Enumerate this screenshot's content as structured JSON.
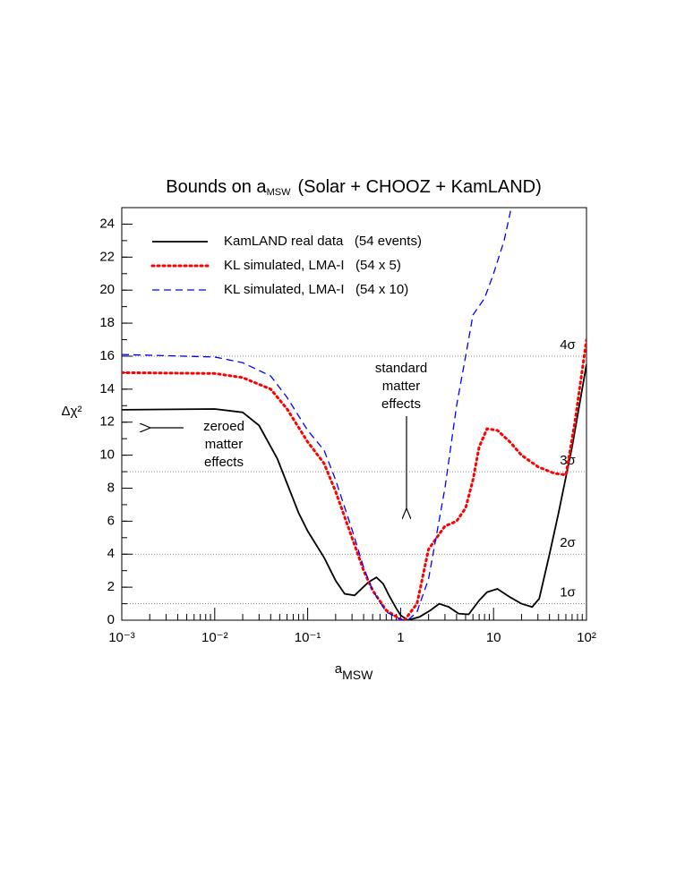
{
  "chart_data": {
    "type": "line",
    "title": {
      "text_before": "Bounds on a",
      "subscript": "MSW",
      "text_after": "(Solar + CHOOZ + KamLAND)"
    },
    "x_label": {
      "base": "a",
      "subscript": "MSW"
    },
    "y_label": "Δχ²",
    "x_scale": "log",
    "xlim": [
      0.001,
      100
    ],
    "xticks": [
      {
        "value": 0.001,
        "label": "10⁻³"
      },
      {
        "value": 0.01,
        "label": "10⁻²"
      },
      {
        "value": 0.1,
        "label": "10⁻¹"
      },
      1,
      10,
      {
        "value": 100,
        "label": "10²"
      }
    ],
    "ylim": [
      0,
      25
    ],
    "yticks": [
      0,
      2,
      4,
      6,
      8,
      10,
      12,
      14,
      16,
      18,
      20,
      22,
      24
    ],
    "legend": "upper left",
    "sigma_levels": [
      {
        "value": 1,
        "label": "1σ"
      },
      {
        "value": 4,
        "label": "2σ"
      },
      {
        "value": 9,
        "label": "3σ"
      },
      {
        "value": 16,
        "label": "4σ"
      }
    ],
    "annotations": [
      {
        "lines": [
          "zeroed",
          "matter",
          "effects"
        ]
      },
      {
        "lines": [
          "standard",
          "matter",
          "effects"
        ]
      }
    ],
    "series": [
      {
        "name": "KamLAND real data   (54 events)",
        "color": "#000000",
        "style": "solid",
        "x": [
          0.001,
          0.01,
          0.02,
          0.03,
          0.047,
          0.08,
          0.1,
          0.15,
          0.2,
          0.25,
          0.32,
          0.45,
          0.55,
          0.65,
          0.75,
          0.9,
          1.0,
          1.2,
          1.6,
          2.1,
          2.6,
          3.3,
          4.2,
          5.4,
          7,
          8.5,
          11,
          15,
          20,
          26,
          31,
          40,
          50,
          70,
          100
        ],
        "values": [
          12.75,
          12.8,
          12.6,
          11.8,
          9.8,
          6.5,
          5.4,
          3.8,
          2.4,
          1.6,
          1.5,
          2.3,
          2.6,
          2.2,
          1.5,
          0.7,
          0.3,
          0,
          0.2,
          0.6,
          1.0,
          0.8,
          0.4,
          0.35,
          1.2,
          1.7,
          1.9,
          1.4,
          1.0,
          0.8,
          1.3,
          4.0,
          6.5,
          10.5,
          15.5
        ]
      },
      {
        "name": "KL simulated, LMA-I   (54 x 5)",
        "color": "#ff0000",
        "style": "dotted",
        "x": [
          0.001,
          0.01,
          0.02,
          0.04,
          0.06,
          0.1,
          0.15,
          0.2,
          0.3,
          0.4,
          0.5,
          0.7,
          1.0,
          1.1,
          1.5,
          2,
          3,
          4,
          5,
          6,
          7,
          8.5,
          11,
          15,
          20,
          30,
          45,
          60,
          75,
          100
        ],
        "values": [
          15.0,
          14.95,
          14.7,
          14.0,
          12.8,
          10.8,
          9.5,
          7.8,
          5.0,
          3.0,
          1.8,
          0.6,
          0.05,
          0,
          1.0,
          4.3,
          5.7,
          6.0,
          6.8,
          8.5,
          10.5,
          11.6,
          11.5,
          10.8,
          10.0,
          9.3,
          8.9,
          8.8,
          12.0,
          17.0
        ]
      },
      {
        "name": "KL simulated, LMA-I   (54 x 10)",
        "color": "#0000ff",
        "style": "dashed",
        "x": [
          0.001,
          0.01,
          0.02,
          0.04,
          0.06,
          0.1,
          0.15,
          0.2,
          0.3,
          0.4,
          0.5,
          0.7,
          1.0,
          1.2,
          1.5,
          2,
          3,
          4,
          5,
          6,
          8,
          10,
          13,
          15.5
        ],
        "values": [
          16.1,
          15.95,
          15.6,
          14.8,
          13.5,
          11.5,
          10.3,
          8.5,
          5.5,
          3.2,
          1.8,
          0.5,
          0.05,
          0,
          0.5,
          2.5,
          8.0,
          13.0,
          16.0,
          18.5,
          19.5,
          21.0,
          23.0,
          25.0
        ]
      }
    ]
  }
}
